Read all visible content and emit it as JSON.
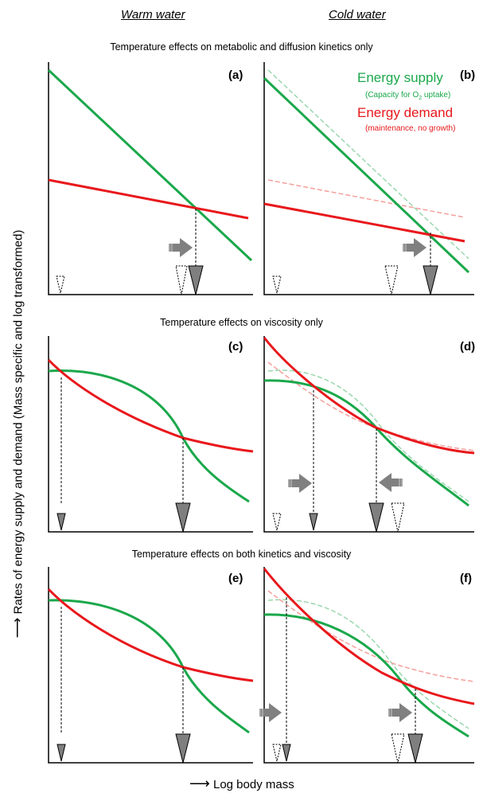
{
  "column_headers": {
    "warm": "Warm water",
    "cold": "Cold water"
  },
  "section_titles": {
    "row1": "Temperature effects on metabolic and diffusion kinetics only",
    "row2": "Temperature effects on viscosity only",
    "row3": "Temperature effects on both kinetics and viscosity"
  },
  "panel_labels": {
    "a": "(a)",
    "b": "(b)",
    "c": "(c)",
    "d": "(d)",
    "e": "(e)",
    "f": "(f)"
  },
  "legend": {
    "supply_title": "Energy supply",
    "supply_sub_prefix": "(Capacity for O",
    "supply_sub_sub": "2",
    "supply_sub_suffix": " uptake)",
    "demand_title": "Energy demand",
    "demand_sub": "(maintenance, no growth)"
  },
  "axes": {
    "y_label": "Rates of energy supply and demand (Mass specific and log transformed)",
    "x_label": "Log body mass"
  },
  "colors": {
    "supply": "#1aa84b",
    "demand": "#e8181c",
    "faded_supply": "#9ad7ae",
    "faded_demand": "#f4a09c",
    "arrow": "#808080"
  }
}
